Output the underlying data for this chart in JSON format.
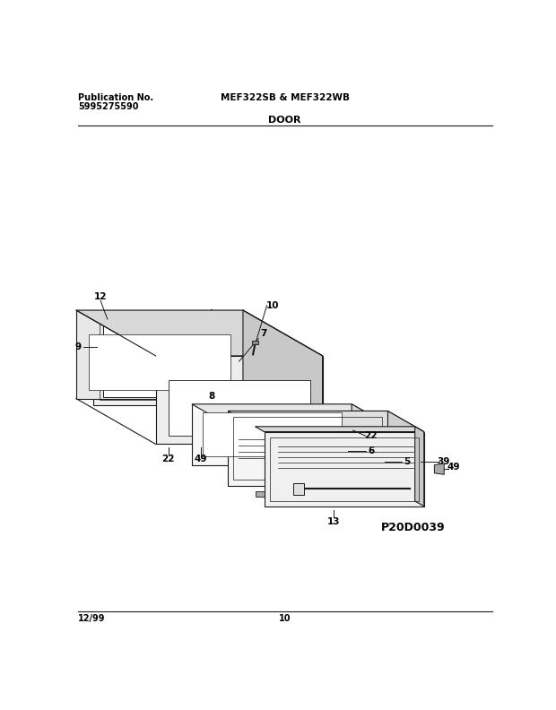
{
  "title_left_line1": "Publication No.",
  "title_left_line2": "5995275590",
  "title_center_top": "MEF322SB & MEF322WB",
  "title_center_bottom": "DOOR",
  "diagram_code": "P20D0039",
  "footer_left": "12/99",
  "footer_center": "10",
  "bg_color": "#ffffff",
  "line_color": "#1a1a1a",
  "text_color": "#000000",
  "gray_light": "#e8e8e8",
  "gray_mid": "#d0d0d0",
  "gray_dark": "#b0b0b0"
}
